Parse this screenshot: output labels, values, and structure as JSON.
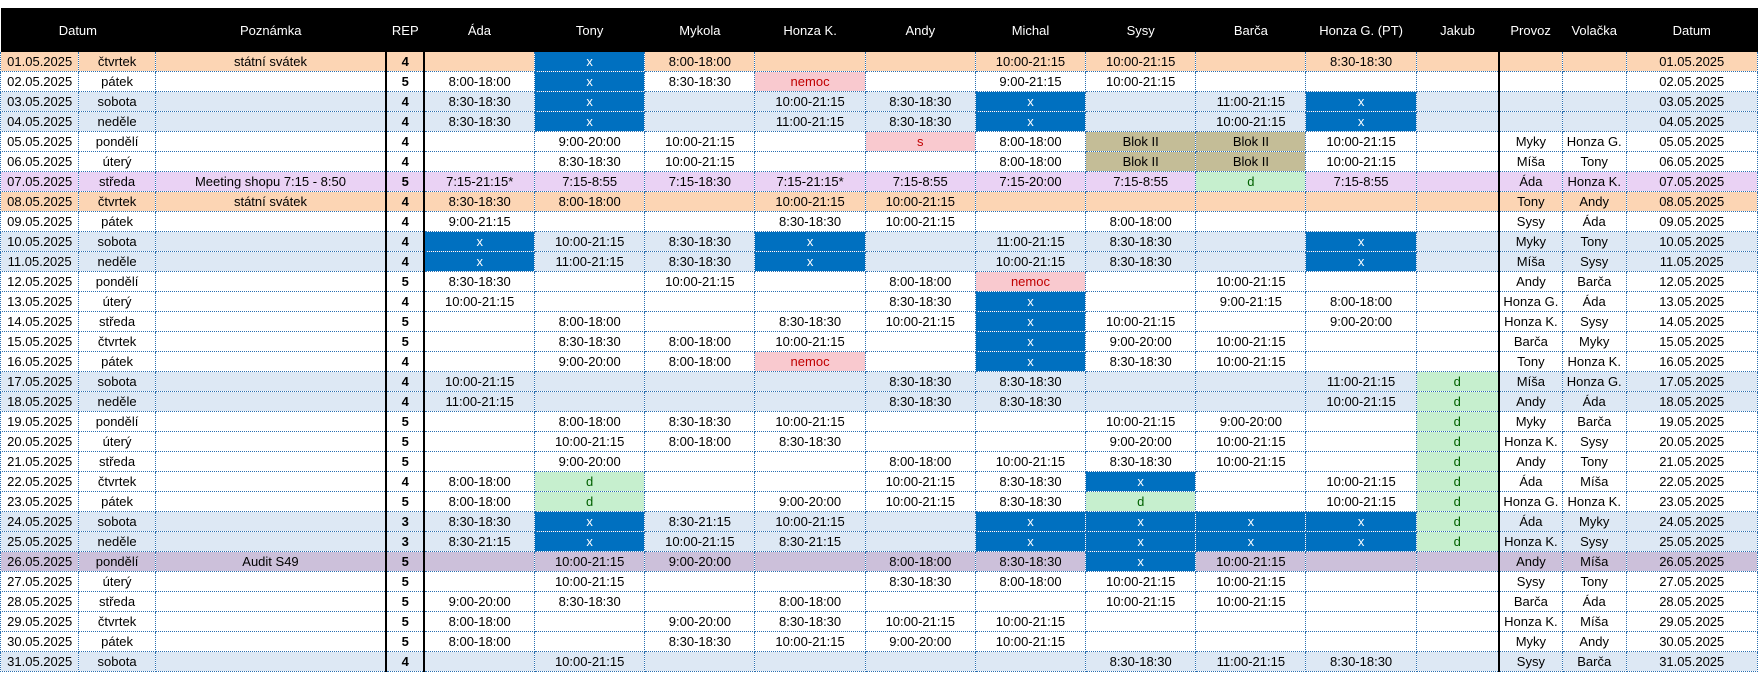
{
  "header": [
    "Datum",
    "Poznámka",
    "REP",
    "Áda",
    "Tony",
    "Mykola",
    "Honza K.",
    "Andy",
    "Michal",
    "Sysy",
    "Barča",
    "Honza G. (PT)",
    "Jakub",
    "Provoz",
    "Volačka",
    "Datum"
  ],
  "rows": [
    {
      "type": "holiday",
      "cells": [
        "01.05.2025",
        "čtvrtek",
        "státní svátek",
        "4",
        "",
        "x",
        "8:00-18:00",
        "",
        "",
        "10:00-21:15",
        "10:00-21:15",
        "",
        "8:30-18:30",
        "",
        "",
        "",
        "01.05.2025"
      ]
    },
    {
      "type": "",
      "cells": [
        "02.05.2025",
        "pátek",
        "",
        "5",
        "8:00-18:00",
        "x",
        "8:30-18:30",
        "nemoc",
        "",
        "9:00-21:15",
        "10:00-21:15",
        "",
        "",
        "",
        "",
        "",
        "02.05.2025"
      ]
    },
    {
      "type": "weekend",
      "cells": [
        "03.05.2025",
        "sobota",
        "",
        "4",
        "8:30-18:30",
        "x",
        "",
        "10:00-21:15",
        "8:30-18:30",
        "x",
        "",
        "11:00-21:15",
        "x",
        "",
        "",
        "",
        "03.05.2025"
      ]
    },
    {
      "type": "weekend",
      "cells": [
        "04.05.2025",
        "neděle",
        "",
        "4",
        "8:30-18:30",
        "x",
        "",
        "11:00-21:15",
        "8:30-18:30",
        "x",
        "",
        "10:00-21:15",
        "x",
        "",
        "",
        "",
        "04.05.2025"
      ]
    },
    {
      "type": "",
      "cells": [
        "05.05.2025",
        "pondělí",
        "",
        "4",
        "",
        "9:00-20:00",
        "10:00-21:15",
        "",
        "s",
        "8:00-18:00",
        "Blok II",
        "Blok II",
        "10:00-21:15",
        "",
        "Myky",
        "Honza G.",
        "05.05.2025"
      ]
    },
    {
      "type": "",
      "cells": [
        "06.05.2025",
        "úterý",
        "",
        "4",
        "",
        "8:30-18:30",
        "10:00-21:15",
        "",
        "",
        "8:00-18:00",
        "Blok II",
        "Blok II",
        "10:00-21:15",
        "",
        "Míša",
        "Tony",
        "06.05.2025"
      ]
    },
    {
      "type": "meeting",
      "cells": [
        "07.05.2025",
        "středa",
        "Meeting shopu 7:15 - 8:50",
        "5",
        "7:15-21:15*",
        "7:15-8:55",
        "7:15-18:30",
        "7:15-21:15*",
        "7:15-8:55",
        "7:15-20:00",
        "7:15-8:55",
        "d",
        "7:15-8:55",
        "",
        "Áda",
        "Honza K.",
        "07.05.2025"
      ]
    },
    {
      "type": "holiday",
      "cells": [
        "08.05.2025",
        "čtvrtek",
        "státní svátek",
        "4",
        "8:30-18:30",
        "8:00-18:00",
        "",
        "10:00-21:15",
        "10:00-21:15",
        "",
        "",
        "",
        "",
        "",
        "Tony",
        "Andy",
        "08.05.2025"
      ]
    },
    {
      "type": "",
      "cells": [
        "09.05.2025",
        "pátek",
        "",
        "4",
        "9:00-21:15",
        "",
        "",
        "8:30-18:30",
        "10:00-21:15",
        "",
        "8:00-18:00",
        "",
        "",
        "",
        "Sysy",
        "Áda",
        "09.05.2025"
      ]
    },
    {
      "type": "weekend",
      "cells": [
        "10.05.2025",
        "sobota",
        "",
        "4",
        "x",
        "10:00-21:15",
        "8:30-18:30",
        "x",
        "",
        "11:00-21:15",
        "8:30-18:30",
        "",
        "x",
        "",
        "Myky",
        "Tony",
        "10.05.2025"
      ]
    },
    {
      "type": "weekend",
      "cells": [
        "11.05.2025",
        "neděle",
        "",
        "4",
        "x",
        "11:00-21:15",
        "8:30-18:30",
        "x",
        "",
        "10:00-21:15",
        "8:30-18:30",
        "",
        "x",
        "",
        "Míša",
        "Sysy",
        "11.05.2025"
      ]
    },
    {
      "type": "",
      "cells": [
        "12.05.2025",
        "pondělí",
        "",
        "5",
        "8:30-18:30",
        "",
        "10:00-21:15",
        "",
        "8:00-18:00",
        "nemoc",
        "",
        "10:00-21:15",
        "",
        "",
        "Andy",
        "Barča",
        "12.05.2025"
      ]
    },
    {
      "type": "",
      "cells": [
        "13.05.2025",
        "úterý",
        "",
        "4",
        "10:00-21:15",
        "",
        "",
        "",
        "8:30-18:30",
        "x",
        "",
        "9:00-21:15",
        "8:00-18:00",
        "",
        "Honza G.",
        "Áda",
        "13.05.2025"
      ]
    },
    {
      "type": "",
      "cells": [
        "14.05.2025",
        "středa",
        "",
        "5",
        "",
        "8:00-18:00",
        "",
        "8:30-18:30",
        "10:00-21:15",
        "x",
        "10:00-21:15",
        "",
        "9:00-20:00",
        "",
        "Honza K.",
        "Sysy",
        "14.05.2025"
      ]
    },
    {
      "type": "",
      "cells": [
        "15.05.2025",
        "čtvrtek",
        "",
        "5",
        "",
        "8:30-18:30",
        "8:00-18:00",
        "10:00-21:15",
        "",
        "x",
        "9:00-20:00",
        "10:00-21:15",
        "",
        "",
        "Barča",
        "Myky",
        "15.05.2025"
      ]
    },
    {
      "type": "",
      "cells": [
        "16.05.2025",
        "pátek",
        "",
        "4",
        "",
        "9:00-20:00",
        "8:00-18:00",
        "nemoc",
        "",
        "x",
        "8:30-18:30",
        "10:00-21:15",
        "",
        "",
        "Tony",
        "Honza K.",
        "16.05.2025"
      ]
    },
    {
      "type": "weekend",
      "cells": [
        "17.05.2025",
        "sobota",
        "",
        "4",
        "10:00-21:15",
        "",
        "",
        "",
        "8:30-18:30",
        "8:30-18:30",
        "",
        "",
        "11:00-21:15",
        "d",
        "Míša",
        "Honza G.",
        "17.05.2025"
      ]
    },
    {
      "type": "weekend",
      "cells": [
        "18.05.2025",
        "neděle",
        "",
        "4",
        "11:00-21:15",
        "",
        "",
        "",
        "8:30-18:30",
        "8:30-18:30",
        "",
        "",
        "10:00-21:15",
        "d",
        "Andy",
        "Áda",
        "18.05.2025"
      ]
    },
    {
      "type": "",
      "cells": [
        "19.05.2025",
        "pondělí",
        "",
        "5",
        "",
        "8:00-18:00",
        "8:30-18:30",
        "10:00-21:15",
        "",
        "",
        "10:00-21:15",
        "9:00-20:00",
        "",
        "d",
        "Myky",
        "Barča",
        "19.05.2025"
      ]
    },
    {
      "type": "",
      "cells": [
        "20.05.2025",
        "úterý",
        "",
        "5",
        "",
        "10:00-21:15",
        "8:00-18:00",
        "8:30-18:30",
        "",
        "",
        "9:00-20:00",
        "10:00-21:15",
        "",
        "d",
        "Honza K.",
        "Sysy",
        "20.05.2025"
      ]
    },
    {
      "type": "",
      "cells": [
        "21.05.2025",
        "středa",
        "",
        "5",
        "",
        "9:00-20:00",
        "",
        "",
        "8:00-18:00",
        "10:00-21:15",
        "8:30-18:30",
        "10:00-21:15",
        "",
        "d",
        "Andy",
        "Tony",
        "21.05.2025"
      ]
    },
    {
      "type": "",
      "cells": [
        "22.05.2025",
        "čtvrtek",
        "",
        "4",
        "8:00-18:00",
        "d",
        "",
        "",
        "10:00-21:15",
        "8:30-18:30",
        "x",
        "",
        "10:00-21:15",
        "d",
        "Áda",
        "Míša",
        "22.05.2025"
      ]
    },
    {
      "type": "",
      "cells": [
        "23.05.2025",
        "pátek",
        "",
        "5",
        "8:00-18:00",
        "d",
        "",
        "9:00-20:00",
        "10:00-21:15",
        "8:30-18:30",
        "d",
        "",
        "10:00-21:15",
        "d",
        "Honza G.",
        "Honza K.",
        "23.05.2025"
      ]
    },
    {
      "type": "weekend",
      "cells": [
        "24.05.2025",
        "sobota",
        "",
        "3",
        "8:30-18:30",
        "x",
        "8:30-21:15",
        "10:00-21:15",
        "",
        "x",
        "x",
        "x",
        "x",
        "d",
        "Áda",
        "Myky",
        "24.05.2025"
      ]
    },
    {
      "type": "weekend",
      "cells": [
        "25.05.2025",
        "neděle",
        "",
        "3",
        "8:30-21:15",
        "x",
        "10:00-21:15",
        "8:30-21:15",
        "",
        "x",
        "x",
        "x",
        "x",
        "d",
        "Honza K.",
        "Sysy",
        "25.05.2025"
      ]
    },
    {
      "type": "audit",
      "cells": [
        "26.05.2025",
        "pondělí",
        "Audit S49",
        "5",
        "",
        "10:00-21:15",
        "9:00-20:00",
        "",
        "8:00-18:00",
        "8:30-18:30",
        "x",
        "10:00-21:15",
        "",
        "",
        "Andy",
        "Míša",
        "26.05.2025"
      ]
    },
    {
      "type": "",
      "cells": [
        "27.05.2025",
        "úterý",
        "",
        "5",
        "",
        "10:00-21:15",
        "",
        "",
        "8:30-18:30",
        "8:00-18:00",
        "10:00-21:15",
        "10:00-21:15",
        "",
        "",
        "Sysy",
        "Tony",
        "27.05.2025"
      ]
    },
    {
      "type": "",
      "cells": [
        "28.05.2025",
        "středa",
        "",
        "5",
        "9:00-20:00",
        "8:30-18:30",
        "",
        "8:00-18:00",
        "",
        "",
        "10:00-21:15",
        "10:00-21:15",
        "",
        "",
        "Barča",
        "Áda",
        "28.05.2025"
      ]
    },
    {
      "type": "",
      "cells": [
        "29.05.2025",
        "čtvrtek",
        "",
        "5",
        "8:00-18:00",
        "",
        "9:00-20:00",
        "8:30-18:30",
        "10:00-21:15",
        "10:00-21:15",
        "",
        "",
        "",
        "",
        "Honza K.",
        "Míša",
        "29.05.2025"
      ]
    },
    {
      "type": "",
      "cells": [
        "30.05.2025",
        "pátek",
        "",
        "5",
        "8:00-18:00",
        "",
        "8:30-18:30",
        "10:00-21:15",
        "9:00-20:00",
        "10:00-21:15",
        "",
        "",
        "",
        "",
        "Myky",
        "Andy",
        "30.05.2025"
      ]
    },
    {
      "type": "weekend",
      "cells": [
        "31.05.2025",
        "sobota",
        "",
        "4",
        "",
        "10:00-21:15",
        "",
        "",
        "",
        "",
        "8:30-18:30",
        "11:00-21:15",
        "8:30-18:30",
        "",
        "Sysy",
        "Barča",
        "31.05.2025"
      ]
    }
  ]
}
